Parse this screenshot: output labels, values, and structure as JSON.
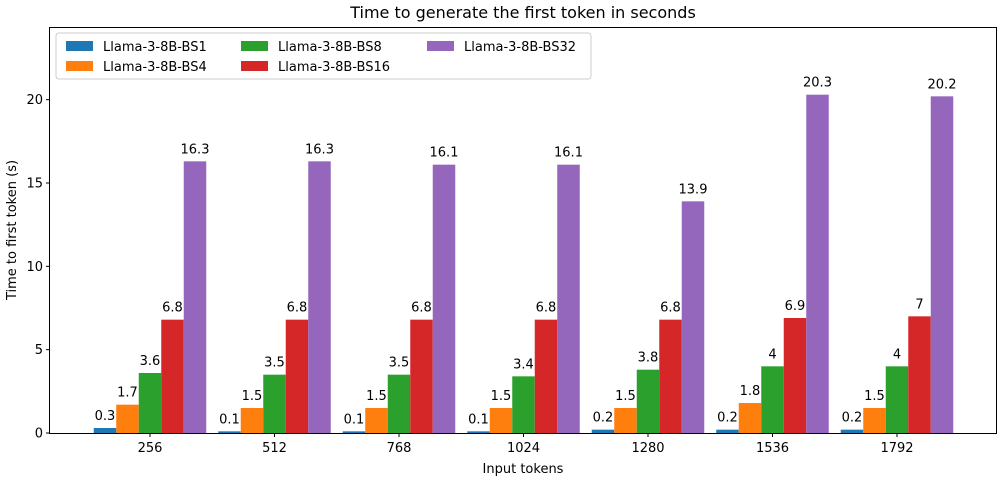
{
  "chart_data": {
    "type": "bar",
    "title": "Time to generate the first token in seconds",
    "xlabel": "Input tokens",
    "ylabel": "Time to first token (s)",
    "categories": [
      "256",
      "512",
      "768",
      "1024",
      "1280",
      "1536",
      "1792"
    ],
    "ylim": [
      0,
      24.3
    ],
    "yticks": [
      0,
      5,
      10,
      15,
      20
    ],
    "legend_position": "top-left",
    "series": [
      {
        "name": "Llama-3-8B-BS1",
        "color": "#1f77b4",
        "values": [
          0.3,
          0.1,
          0.1,
          0.1,
          0.2,
          0.2,
          0.2
        ]
      },
      {
        "name": "Llama-3-8B-BS4",
        "color": "#ff7f0e",
        "values": [
          1.7,
          1.5,
          1.5,
          1.5,
          1.5,
          1.8,
          1.5
        ]
      },
      {
        "name": "Llama-3-8B-BS8",
        "color": "#2ca02c",
        "values": [
          3.6,
          3.5,
          3.5,
          3.4,
          3.8,
          4,
          4
        ]
      },
      {
        "name": "Llama-3-8B-BS16",
        "color": "#d62728",
        "values": [
          6.8,
          6.8,
          6.8,
          6.8,
          6.8,
          6.9,
          7
        ]
      },
      {
        "name": "Llama-3-8B-BS32",
        "color": "#9467bd",
        "values": [
          16.3,
          16.3,
          16.1,
          16.1,
          13.9,
          20.3,
          20.2
        ]
      }
    ]
  }
}
